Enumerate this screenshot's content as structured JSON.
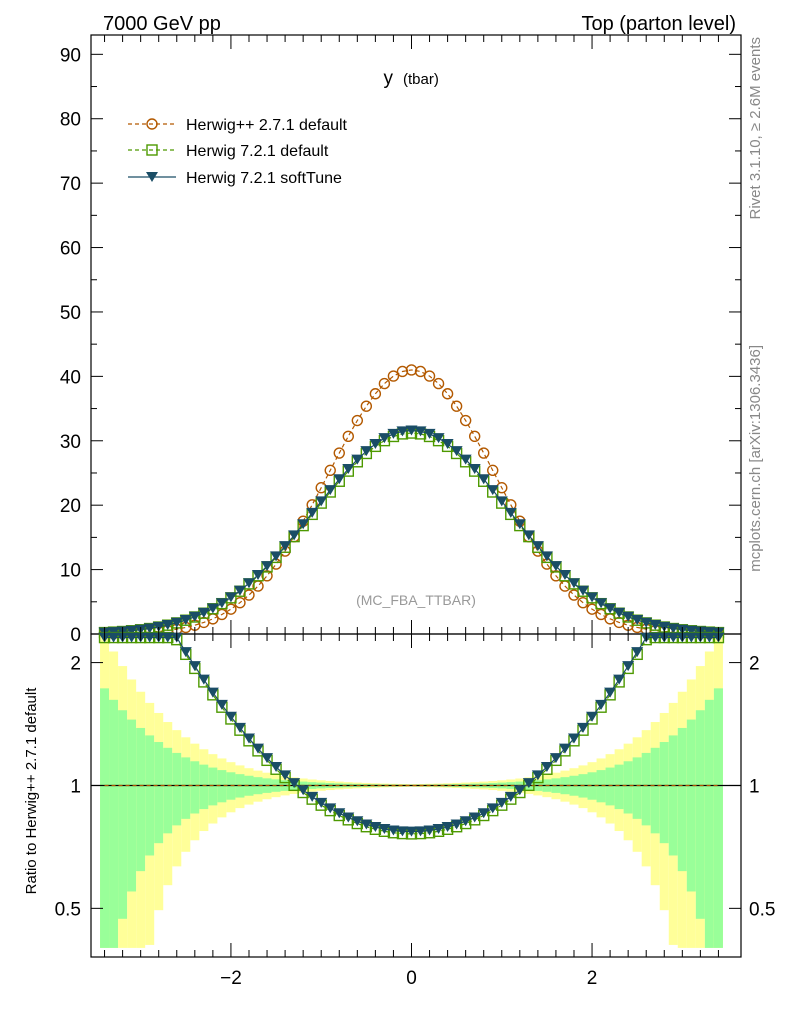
{
  "header": {
    "left": "7000 GeV pp",
    "right": "Top (parton level)"
  },
  "side_labels": {
    "rivet": "Rivet 3.1.10, ≥ 2.6M events",
    "mcplots": "mcplots.cern.ch [arXiv:1306.3436]"
  },
  "chart_data": [
    {
      "type": "scatter",
      "title_main": "y",
      "title_sub": "(tbar)",
      "watermark": "(MC_FBA_TTBAR)",
      "xlim": [
        -3.55,
        3.65
      ],
      "ylim": [
        0,
        93
      ],
      "yticks": [
        "0",
        "10",
        "20",
        "30",
        "40",
        "50",
        "60",
        "70",
        "80",
        "90"
      ],
      "ytick_values": [
        0,
        10,
        20,
        30,
        40,
        50,
        60,
        70,
        80,
        90
      ],
      "xticks": [
        "−2",
        "0",
        "2"
      ],
      "xtick_values": [
        -2,
        0,
        2
      ],
      "legend_position": "top-left",
      "series": [
        {
          "name": "Herwig++ 2.7.1 default",
          "color": "#b35900",
          "marker": "circle-open",
          "line": "dashed",
          "amplitude": 41.0,
          "sigma": 0.92
        },
        {
          "name": "Herwig 7.2.1 default",
          "color": "#4d9900",
          "marker": "square-open",
          "line": "dashed",
          "amplitude": 31.2,
          "sigma": 1.08
        },
        {
          "name": "Herwig 7.2.1 softTune",
          "color": "#1a4d66",
          "marker": "triangle-down-filled",
          "line": "solid",
          "amplitude": 31.6,
          "sigma": 1.08
        }
      ],
      "x_bins": {
        "start": -3.4,
        "end": 3.4,
        "step": 0.1
      }
    },
    {
      "type": "scatter",
      "ylabel": "Ratio to Herwig++ 2.7.1 default",
      "ylim": [
        0.38,
        2.35
      ],
      "log_scale": true,
      "yticks": [
        "0.5",
        "1",
        "2"
      ],
      "ytick_values": [
        0.5,
        1,
        2
      ],
      "reference_line": 1,
      "band_colors": {
        "inner": "#99ff99",
        "outer": "#ffff99"
      },
      "xticks": [
        "−2",
        "0",
        "2"
      ],
      "xtick_values": [
        -2,
        0,
        2
      ]
    }
  ]
}
